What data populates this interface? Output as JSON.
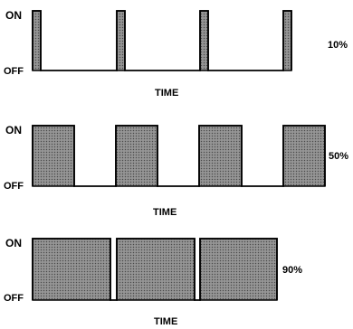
{
  "diagram": {
    "level_labels": {
      "on": "ON",
      "off": "OFF"
    },
    "time_label": "TIME",
    "panels": [
      {
        "duty_label": "10%",
        "duty_cycle": 0.1,
        "pulses": 4
      },
      {
        "duty_label": "50%",
        "duty_cycle": 0.5,
        "pulses": 4
      },
      {
        "duty_label": "90%",
        "duty_cycle": 0.9,
        "pulses": 3
      }
    ],
    "colors": {
      "line": "#000000",
      "fill": "#7d7d7d"
    }
  }
}
